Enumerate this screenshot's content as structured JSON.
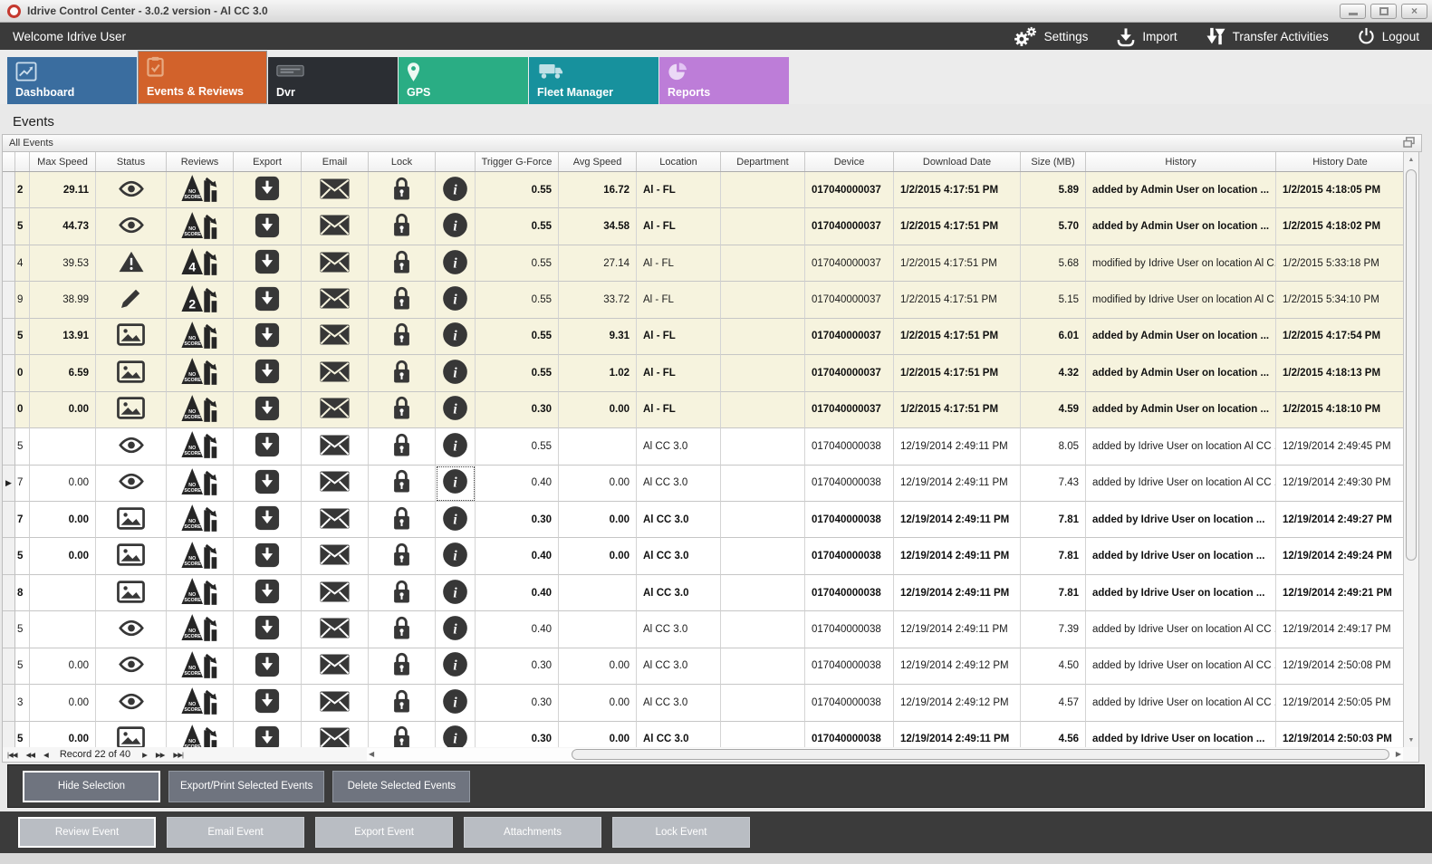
{
  "window": {
    "title": "Idrive Control Center - 3.0.2 version - Al CC 3.0",
    "controls": {
      "minimize": "",
      "maximize": "",
      "close": "×"
    }
  },
  "toolbar": {
    "welcome": "Welcome Idrive User",
    "actions": [
      {
        "label": "Settings",
        "icon": "gears-icon"
      },
      {
        "label": "Import",
        "icon": "import-icon"
      },
      {
        "label": "Transfer Activities",
        "icon": "transfer-arrows-icon"
      },
      {
        "label": "Logout",
        "icon": "power-icon"
      }
    ]
  },
  "tabs": [
    {
      "label": "Dashboard",
      "icon": "line-chart-icon",
      "color": "#3A6D9F",
      "selected": false
    },
    {
      "label": "Events & Reviews",
      "icon": "clipboard-check-icon",
      "color": "#D2622B",
      "selected": true
    },
    {
      "label": "Dvr",
      "icon": "dvr-device-icon",
      "color": "#2B2E33",
      "selected": false
    },
    {
      "label": "GPS",
      "icon": "map-pin-icon",
      "color": "#2AAD84",
      "selected": false
    },
    {
      "label": "Fleet Manager",
      "icon": "truck-icon",
      "color": "#17919D",
      "selected": false
    },
    {
      "label": "Reports",
      "icon": "pie-chart-icon",
      "color": "#BD7DD8",
      "selected": false
    }
  ],
  "section_title": "Events",
  "panel": {
    "title": "All Events",
    "corner_icon": "restore-panel-icon"
  },
  "grid": {
    "columns": [
      "",
      "",
      "Max Speed",
      "Status",
      "Reviews",
      "Export",
      "Email",
      "Lock",
      "",
      "Trigger G-Force",
      "Avg Speed",
      "Location",
      "Department",
      "Device",
      "Download Date",
      "Size (MB)",
      "History",
      "History Date"
    ],
    "icon_colors": {
      "glyph": "#373737",
      "cream_row_bg": "#F6F3DE",
      "white_row_bg": "#FFFFFF"
    },
    "rows": [
      {
        "id": "2",
        "bg": "cream",
        "bold": true,
        "current": false,
        "info_focused": false,
        "max_speed": "29.11",
        "status": "eye-icon",
        "review": "NO SCORE",
        "trigger": "0.55",
        "avg": "16.72",
        "location": "Al - FL",
        "department": "",
        "device": "017040000037",
        "download": "1/2/2015 4:17:51 PM",
        "size": "5.89",
        "history": "added by Admin User on location ...",
        "hdate": "1/2/2015 4:18:05 PM"
      },
      {
        "id": "5",
        "bg": "cream",
        "bold": true,
        "current": false,
        "info_focused": false,
        "max_speed": "44.73",
        "status": "eye-icon",
        "review": "NO SCORE",
        "trigger": "0.55",
        "avg": "34.58",
        "location": "Al - FL",
        "department": "",
        "device": "017040000037",
        "download": "1/2/2015 4:17:51 PM",
        "size": "5.70",
        "history": "added by Admin User on location ...",
        "hdate": "1/2/2015 4:18:02 PM"
      },
      {
        "id": "4",
        "bg": "cream",
        "bold": false,
        "current": false,
        "info_focused": false,
        "max_speed": "39.53",
        "status": "warning-icon",
        "review": "4",
        "trigger": "0.55",
        "avg": "27.14",
        "location": "Al - FL",
        "department": "",
        "device": "017040000037",
        "download": "1/2/2015 4:17:51 PM",
        "size": "5.68",
        "history": "modified by Idrive User on location Al C...",
        "hdate": "1/2/2015 5:33:18 PM"
      },
      {
        "id": "9",
        "bg": "cream",
        "bold": false,
        "current": false,
        "info_focused": false,
        "max_speed": "38.99",
        "status": "pencil-icon",
        "review": "2",
        "trigger": "0.55",
        "avg": "33.72",
        "location": "Al - FL",
        "department": "",
        "device": "017040000037",
        "download": "1/2/2015 4:17:51 PM",
        "size": "5.15",
        "history": "modified by Idrive User on location Al C...",
        "hdate": "1/2/2015 5:34:10 PM"
      },
      {
        "id": "5",
        "bg": "cream",
        "bold": true,
        "current": false,
        "info_focused": false,
        "max_speed": "13.91",
        "status": "image-icon",
        "review": "NO SCORE",
        "trigger": "0.55",
        "avg": "9.31",
        "location": "Al - FL",
        "department": "",
        "device": "017040000037",
        "download": "1/2/2015 4:17:51 PM",
        "size": "6.01",
        "history": "added by Admin User on location ...",
        "hdate": "1/2/2015 4:17:54 PM"
      },
      {
        "id": "0",
        "bg": "cream",
        "bold": true,
        "current": false,
        "info_focused": false,
        "max_speed": "6.59",
        "status": "image-icon",
        "review": "NO SCORE",
        "trigger": "0.55",
        "avg": "1.02",
        "location": "Al - FL",
        "department": "",
        "device": "017040000037",
        "download": "1/2/2015 4:17:51 PM",
        "size": "4.32",
        "history": "added by Admin User on location ...",
        "hdate": "1/2/2015 4:18:13 PM"
      },
      {
        "id": "0",
        "bg": "cream",
        "bold": true,
        "current": false,
        "info_focused": false,
        "max_speed": "0.00",
        "status": "image-icon",
        "review": "NO SCORE",
        "trigger": "0.30",
        "avg": "0.00",
        "location": "Al - FL",
        "department": "",
        "device": "017040000037",
        "download": "1/2/2015 4:17:51 PM",
        "size": "4.59",
        "history": "added by Admin User on location ...",
        "hdate": "1/2/2015 4:18:10 PM"
      },
      {
        "id": "5",
        "bg": "white",
        "bold": false,
        "current": false,
        "info_focused": false,
        "max_speed": "",
        "status": "eye-icon",
        "review": "NO SCORE",
        "trigger": "0.55",
        "avg": "",
        "location": "Al CC 3.0",
        "department": "",
        "device": "017040000038",
        "download": "12/19/2014 2:49:11 PM",
        "size": "8.05",
        "history": "added by Idrive User on location Al CC ...",
        "hdate": "12/19/2014 2:49:45 PM"
      },
      {
        "id": "7",
        "bg": "white",
        "bold": false,
        "current": true,
        "info_focused": true,
        "max_speed": "0.00",
        "status": "eye-icon",
        "review": "NO SCORE",
        "trigger": "0.40",
        "avg": "0.00",
        "location": "Al CC 3.0",
        "department": "",
        "device": "017040000038",
        "download": "12/19/2014 2:49:11 PM",
        "size": "7.43",
        "history": "added by Idrive User on location Al CC ...",
        "hdate": "12/19/2014 2:49:30 PM"
      },
      {
        "id": "7",
        "bg": "white",
        "bold": true,
        "current": false,
        "info_focused": false,
        "max_speed": "0.00",
        "status": "image-icon",
        "review": "NO SCORE",
        "trigger": "0.30",
        "avg": "0.00",
        "location": "Al CC 3.0",
        "department": "",
        "device": "017040000038",
        "download": "12/19/2014 2:49:11 PM",
        "size": "7.81",
        "history": "added by Idrive User on location ...",
        "hdate": "12/19/2014 2:49:27 PM"
      },
      {
        "id": "5",
        "bg": "white",
        "bold": true,
        "current": false,
        "info_focused": false,
        "max_speed": "0.00",
        "status": "image-icon",
        "review": "NO SCORE",
        "trigger": "0.40",
        "avg": "0.00",
        "location": "Al CC 3.0",
        "department": "",
        "device": "017040000038",
        "download": "12/19/2014 2:49:11 PM",
        "size": "7.81",
        "history": "added by Idrive User on location ...",
        "hdate": "12/19/2014 2:49:24 PM"
      },
      {
        "id": "8",
        "bg": "white",
        "bold": true,
        "current": false,
        "info_focused": false,
        "max_speed": "",
        "status": "image-icon",
        "review": "NO SCORE",
        "trigger": "0.40",
        "avg": "",
        "location": "Al CC 3.0",
        "department": "",
        "device": "017040000038",
        "download": "12/19/2014 2:49:11 PM",
        "size": "7.81",
        "history": "added by Idrive User on location ...",
        "hdate": "12/19/2014 2:49:21 PM"
      },
      {
        "id": "5",
        "bg": "white",
        "bold": false,
        "current": false,
        "info_focused": false,
        "max_speed": "",
        "status": "eye-icon",
        "review": "NO SCORE",
        "trigger": "0.40",
        "avg": "",
        "location": "Al CC 3.0",
        "department": "",
        "device": "017040000038",
        "download": "12/19/2014 2:49:11 PM",
        "size": "7.39",
        "history": "added by Idrive User on location Al CC ...",
        "hdate": "12/19/2014 2:49:17 PM"
      },
      {
        "id": "5",
        "bg": "white",
        "bold": false,
        "current": false,
        "info_focused": false,
        "max_speed": "0.00",
        "status": "eye-icon",
        "review": "NO SCORE",
        "trigger": "0.30",
        "avg": "0.00",
        "location": "Al CC 3.0",
        "department": "",
        "device": "017040000038",
        "download": "12/19/2014 2:49:12 PM",
        "size": "4.50",
        "history": "added by Idrive User on location Al CC ...",
        "hdate": "12/19/2014 2:50:08 PM"
      },
      {
        "id": "3",
        "bg": "white",
        "bold": false,
        "current": false,
        "info_focused": false,
        "max_speed": "0.00",
        "status": "eye-icon",
        "review": "NO SCORE",
        "trigger": "0.30",
        "avg": "0.00",
        "location": "Al CC 3.0",
        "department": "",
        "device": "017040000038",
        "download": "12/19/2014 2:49:12 PM",
        "size": "4.57",
        "history": "added by Idrive User on location Al CC ...",
        "hdate": "12/19/2014 2:50:05 PM"
      },
      {
        "id": "5",
        "bg": "white",
        "bold": true,
        "current": false,
        "info_focused": false,
        "max_speed": "0.00",
        "status": "image-icon",
        "review": "NO SCORE",
        "trigger": "0.30",
        "avg": "0.00",
        "location": "Al CC 3.0",
        "department": "",
        "device": "017040000038",
        "download": "12/19/2014 2:49:11 PM",
        "size": "4.56",
        "history": "added by Idrive User on location ...",
        "hdate": "12/19/2014 2:50:03 PM"
      }
    ]
  },
  "navigator": {
    "buttons": [
      "|◀◀",
      "◀◀",
      "◀",
      "▶",
      "▶▶",
      "▶▶|"
    ],
    "label": "Record 22 of 40"
  },
  "action_bars": {
    "selection": [
      {
        "label": "Hide Selection",
        "focused": true
      },
      {
        "label": "Export/Print Selected Events",
        "focused": false
      },
      {
        "label": "Delete Selected  Events",
        "focused": false
      }
    ],
    "event": [
      {
        "label": "Review Event",
        "focused": true
      },
      {
        "label": "Email Event",
        "focused": false
      },
      {
        "label": "Export Event",
        "focused": false
      },
      {
        "label": "Attachments",
        "focused": false
      },
      {
        "label": "Lock Event",
        "focused": false
      }
    ]
  }
}
